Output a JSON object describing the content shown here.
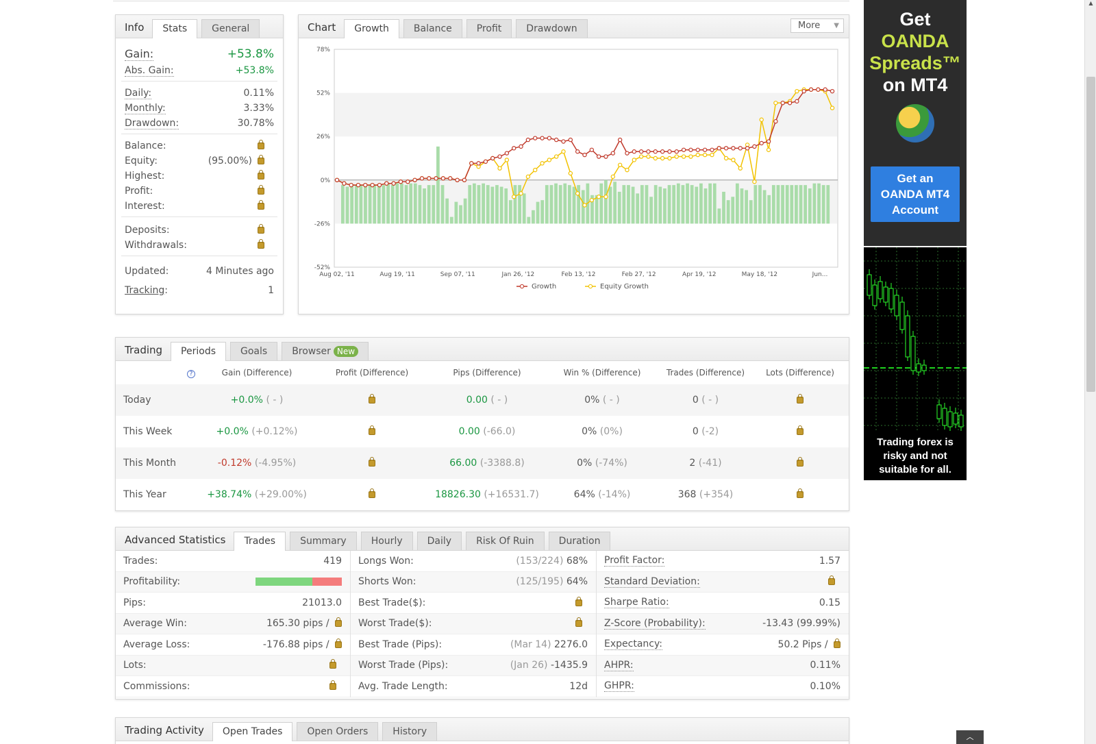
{
  "info": {
    "title": "Info",
    "tabs": [
      "Stats",
      "General"
    ],
    "gain_label": "Gain:",
    "gain_value": "+53.8%",
    "abs_gain_label": "Abs. Gain:",
    "abs_gain_value": "+53.8%",
    "daily_label": "Daily:",
    "daily_value": "0.11%",
    "monthly_label": "Monthly:",
    "monthly_value": "3.33%",
    "drawdown_label": "Drawdown:",
    "drawdown_value": "30.78%",
    "balance_label": "Balance:",
    "equity_label": "Equity:",
    "equity_value": "(95.00%)",
    "highest_label": "Highest:",
    "profit_label": "Profit:",
    "interest_label": "Interest:",
    "deposits_label": "Deposits:",
    "withdrawals_label": "Withdrawals:",
    "updated_label": "Updated:",
    "updated_value": "4 Minutes ago",
    "tracking_label": "Tracking",
    "tracking_colon": ":",
    "tracking_value": "1"
  },
  "chart": {
    "title": "Chart",
    "tabs": [
      "Growth",
      "Balance",
      "Profit",
      "Drawdown"
    ],
    "more_label": "More",
    "legend_growth": "Growth",
    "legend_equity": "Equity Growth",
    "colors": {
      "growth": "#c0392b",
      "equity": "#f2c200",
      "bars": "#a9dca9"
    }
  },
  "chart_data": {
    "type": "line",
    "ylim": [
      -52,
      78
    ],
    "yticks": [
      "78%",
      "52%",
      "26%",
      "0%",
      "-26%",
      "-52%"
    ],
    "xticks": [
      "Aug 02, '11",
      "Aug 19, '11",
      "Sep 07, '11",
      "Jan 26, '12",
      "Feb 13, '12",
      "Feb 27, '12",
      "Apr 19, '12",
      "May 18, '12",
      "Jun..."
    ],
    "series": [
      {
        "name": "Growth",
        "values": [
          0,
          -2,
          -3,
          -3,
          -3,
          -3,
          -3,
          -2,
          -2,
          -1,
          -1,
          0,
          1,
          1,
          1,
          1,
          1,
          0,
          0,
          10,
          10,
          11,
          13,
          14,
          16,
          19,
          20,
          24,
          25,
          25,
          25,
          24,
          23,
          24,
          17,
          15,
          18,
          14,
          14,
          16,
          24,
          16,
          17,
          17,
          17,
          17,
          17,
          17,
          17,
          18,
          18,
          18,
          18,
          18,
          19,
          19,
          19,
          19,
          19,
          20,
          22,
          23,
          35,
          46,
          46,
          47,
          53,
          54,
          54,
          54,
          53
        ]
      },
      {
        "name": "Equity Growth",
        "values": [
          0,
          -2,
          -3,
          -3,
          -3,
          -3,
          -3,
          -2,
          -2,
          -1,
          -1,
          0,
          1,
          1,
          1,
          1,
          1,
          0,
          0,
          10,
          8,
          11,
          13,
          7,
          12,
          -10,
          -8,
          2,
          6,
          10,
          12,
          14,
          17,
          4,
          -8,
          -15,
          -12,
          -10,
          -10,
          2,
          9,
          6,
          12,
          14,
          14,
          13,
          13,
          13,
          14,
          14,
          14,
          15,
          15,
          15,
          19,
          13,
          12,
          7,
          21,
          -1,
          36,
          18,
          46,
          46,
          47,
          53,
          54,
          54,
          54,
          53,
          43
        ]
      },
      {
        "name": "bars",
        "values": [
          -3,
          -4,
          -3,
          -3,
          -3,
          -3,
          -3,
          -3,
          -3,
          -3,
          -2,
          -3,
          -2,
          -2,
          -3,
          -2,
          -2,
          -3,
          -5,
          -3,
          -3,
          20,
          -3,
          -11,
          -22,
          -13,
          -15,
          -11,
          -3,
          -2,
          -3,
          -2,
          -3,
          -4,
          -3,
          -4,
          -5,
          -12,
          -3,
          -3,
          -8,
          -22,
          -18,
          -13,
          -12,
          -3,
          -3,
          -2,
          -3,
          -2,
          -3,
          -4,
          -3,
          -6,
          -2,
          -9,
          -9,
          -2,
          0,
          -4,
          -1,
          -7,
          -3,
          -3,
          -4,
          -8,
          -3,
          -3,
          -10,
          -3,
          -4,
          -5,
          -3,
          -3,
          -2,
          -3,
          -2,
          -3,
          -4,
          -2,
          -5,
          -2,
          -2,
          -17,
          -7,
          -12,
          -10,
          -2,
          -5,
          -6,
          -12,
          -3,
          -3,
          -6,
          -9,
          -3,
          -3,
          -3,
          -3,
          -3,
          -3,
          -3,
          -3,
          -5,
          -2,
          -2,
          -3,
          -3
        ]
      }
    ]
  },
  "trading": {
    "title": "Trading",
    "tabs": [
      "Periods",
      "Goals",
      "Browser"
    ],
    "new_badge": "New",
    "help_icon": "?",
    "headers": [
      "Gain (Difference)",
      "Profit (Difference)",
      "Pips (Difference)",
      "Win % (Difference)",
      "Trades (Difference)",
      "Lots (Difference)"
    ],
    "rows": [
      {
        "period": "Today",
        "gain": "+0.0%",
        "gain_diff": "( - )",
        "pips": "0.00",
        "pips_diff": "( - )",
        "win": "0%",
        "win_diff": "( - )",
        "trades": "0",
        "trades_diff": "( - )"
      },
      {
        "period": "This Week",
        "gain": "+0.0%",
        "gain_diff": "(+0.12%)",
        "pips": "0.00",
        "pips_diff": "(-66.0)",
        "win": "0%",
        "win_diff": "(0%)",
        "trades": "0",
        "trades_diff": "(-2)"
      },
      {
        "period": "This Month",
        "gain": "-0.12%",
        "gain_diff": "(-4.95%)",
        "pips": "66.00",
        "pips_diff": "(-3388.8)",
        "win": "0%",
        "win_diff": "(-74%)",
        "trades": "2",
        "trades_diff": "(-41)"
      },
      {
        "period": "This Year",
        "gain": "+38.74%",
        "gain_diff": "(+29.00%)",
        "pips": "18826.30",
        "pips_diff": "(+16531.7)",
        "win": "64%",
        "win_diff": "(-14%)",
        "trades": "368",
        "trades_diff": "(+354)"
      }
    ]
  },
  "advanced": {
    "title": "Advanced Statistics",
    "tabs": [
      "Trades",
      "Summary",
      "Hourly",
      "Daily",
      "Risk Of Ruin",
      "Duration"
    ],
    "trades_label": "Trades:",
    "trades_value": "419",
    "profitability_label": "Profitability:",
    "profitability_win_fraction": 0.66,
    "pips_label": "Pips:",
    "pips_value": "21013.0",
    "avg_win_label": "Average Win:",
    "avg_win_value": "165.30 pips /",
    "avg_loss_label": "Average Loss:",
    "avg_loss_value": "-176.88 pips /",
    "lots_label": "Lots:",
    "commissions_label": "Commissions:",
    "longs_won_label": "Longs Won:",
    "longs_won_count": "(153/224)",
    "longs_won_pct": "68%",
    "shorts_won_label": "Shorts Won:",
    "shorts_won_count": "(125/195)",
    "shorts_won_pct": "64%",
    "best_trade_usd_label": "Best Trade($):",
    "worst_trade_usd_label": "Worst Trade($):",
    "best_trade_pips_label": "Best Trade (Pips):",
    "best_trade_pips_date": "(Mar 14)",
    "best_trade_pips_value": "2276.0",
    "worst_trade_pips_label": "Worst Trade (Pips):",
    "worst_trade_pips_date": "(Jan 26)",
    "worst_trade_pips_value": "-1435.9",
    "avg_len_label": "Avg. Trade Length:",
    "avg_len_value": "12d",
    "profit_factor_label": "Profit Factor:",
    "profit_factor_value": "1.57",
    "std_dev_label": "Standard Deviation:",
    "sharpe_label": "Sharpe Ratio:",
    "sharpe_value": "0.15",
    "zscore_label": "Z-Score (Probability):",
    "zscore_value": "-13.43 (99.99%)",
    "expectancy_label": "Expectancy:",
    "expectancy_value": "50.2 Pips /",
    "ahpr_label": "AHPR:",
    "ahpr_value": "0.11%",
    "ghpr_label": "GHPR:",
    "ghpr_value": "0.10%"
  },
  "activity": {
    "title": "Trading Activity",
    "tabs": [
      "Open Trades",
      "Open Orders",
      "History"
    ]
  },
  "ad": {
    "line1": "Get",
    "line2": "OANDA",
    "line3": "Spreads™",
    "line4": "on MT4",
    "button": "Get an OANDA MT4 Account",
    "disclaimer": "Trading forex is risky and not suitable for all."
  }
}
